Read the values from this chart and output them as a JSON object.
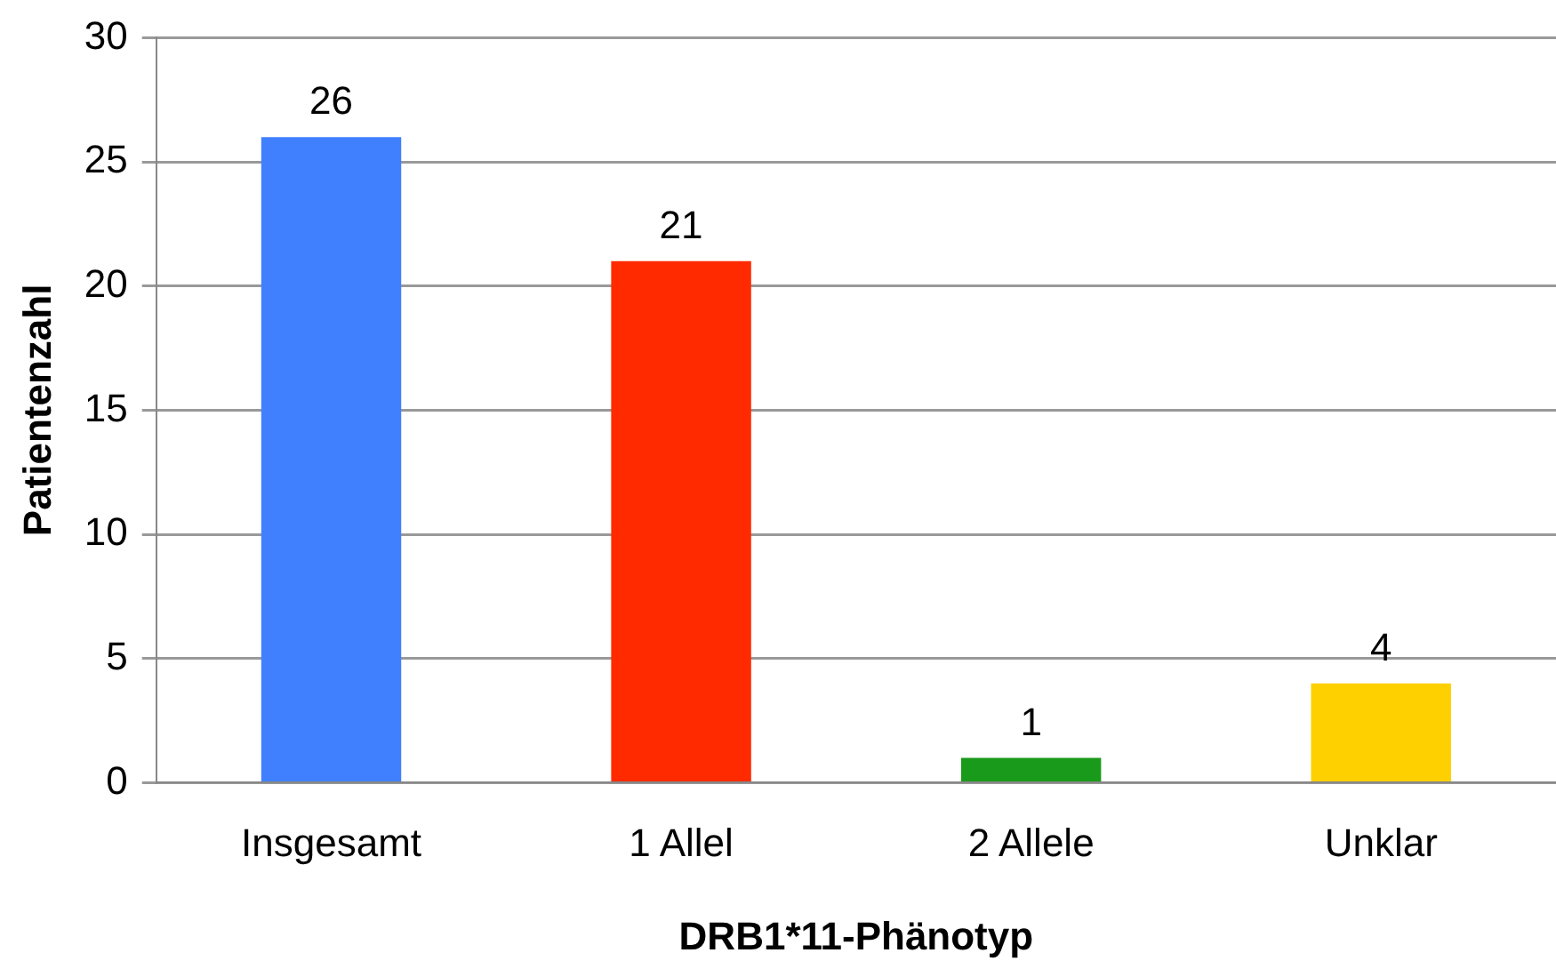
{
  "chart_data": {
    "type": "bar",
    "xlabel": "DRB1*11-Phänotyp",
    "ylabel": "Patientenzahl",
    "categories": [
      "Insgesamt",
      "1 Allel",
      "2 Allele",
      "Unklar"
    ],
    "values": [
      26,
      21,
      1,
      4
    ],
    "colors": [
      "#4080ff",
      "#ff2a00",
      "#1a9a1a",
      "#ffd000"
    ],
    "ylim": [
      0,
      30
    ],
    "yticks": [
      0,
      5,
      10,
      15,
      20,
      25,
      30
    ],
    "grid": "y",
    "legend": false,
    "data_labels": true
  }
}
